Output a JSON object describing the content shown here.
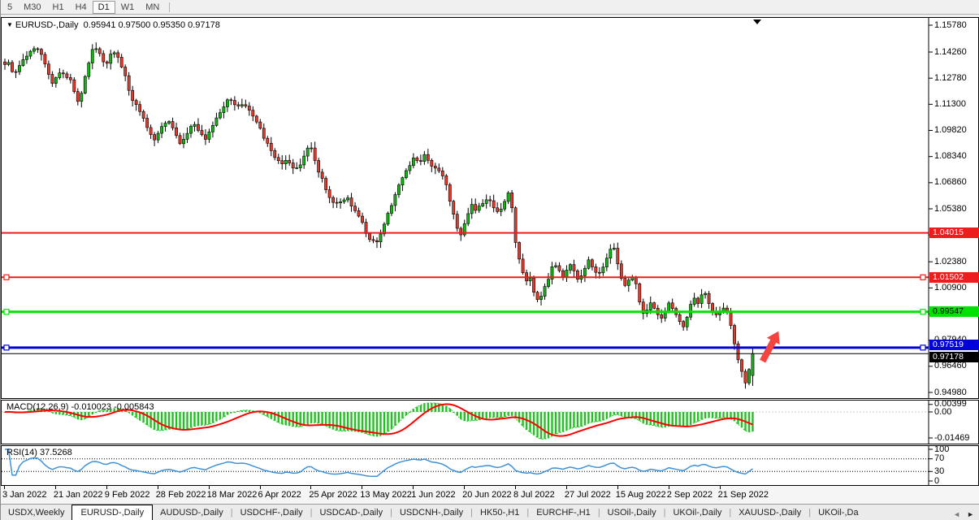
{
  "toolbar": {
    "timeframes": [
      {
        "label": "5",
        "active": false
      },
      {
        "label": "M30",
        "active": false
      },
      {
        "label": "H1",
        "active": false
      },
      {
        "label": "H4",
        "active": false
      },
      {
        "label": "D1",
        "active": true
      },
      {
        "label": "W1",
        "active": false
      },
      {
        "label": "MN",
        "active": false
      }
    ]
  },
  "title": {
    "dropdown_icon": "▼",
    "symbol": "EURUSD-,Daily",
    "ohlc_text": "0.95941 0.97500 0.95350 0.97178"
  },
  "chart_data": {
    "type": "candlestick",
    "symbol": "EURUSD-,Daily",
    "timeframe": "Daily",
    "current_bar": {
      "open": 0.95941,
      "high": 0.975,
      "low": 0.9535,
      "close": 0.97178
    },
    "y_axis_ticks": [
      "1.15780",
      "1.14260",
      "1.12780",
      "1.11300",
      "1.09820",
      "1.08340",
      "1.06860",
      "1.05380",
      "1.03900",
      "1.02380",
      "1.00900",
      "0.99420",
      "0.97940",
      "0.96460",
      "0.94980"
    ],
    "x_axis_dates": [
      "3 Jan 2022",
      "21 Jan 2022",
      "9 Feb 2022",
      "28 Feb 2022",
      "18 Mar 2022",
      "6 Apr 2022",
      "25 Apr 2022",
      "13 May 2022",
      "1 Jun 2022",
      "20 Jun 2022",
      "8 Jul 2022",
      "27 Jul 2022",
      "15 Aug 2022",
      "2 Sep 2022",
      "21 Sep 2022"
    ],
    "horizontal_lines": [
      {
        "price": 1.04015,
        "label": "1.04015",
        "color": "#ee1c1c",
        "thickness": 2,
        "handles": false,
        "label_text_color": "#ffffff",
        "label_dy": 0
      },
      {
        "price": 1.01502,
        "label": "1.01502",
        "color": "#ee1c1c",
        "thickness": 2,
        "handles": true,
        "label_text_color": "#ffffff",
        "label_dy": 0
      },
      {
        "price": 0.99547,
        "label": "0.99547",
        "color": "#00e100",
        "thickness": 3,
        "handles": true,
        "label_text_color": "#000000",
        "label_dy": 0
      },
      {
        "price": 0.97519,
        "label": "0.97519",
        "color": "#0000d8",
        "thickness": 3,
        "handles": true,
        "label_text_color": "#ffffff",
        "label_dy": -3
      },
      {
        "price": 0.97178,
        "label": "0.97178",
        "color": "#000000",
        "thickness": 1,
        "handles": false,
        "label_text_color": "#ffffff",
        "label_dy": 4
      }
    ],
    "candle_colors": {
      "bull": "#11b711",
      "bear": "#e23a2d",
      "outline": "#000000"
    },
    "annotation_arrow": {
      "color": "#f4443f"
    },
    "price_path": [
      [
        8,
        1.1365
      ],
      [
        15,
        1.13
      ],
      [
        25,
        1.137
      ],
      [
        40,
        1.1455
      ],
      [
        50,
        1.141
      ],
      [
        62,
        1.124
      ],
      [
        72,
        1.1315
      ],
      [
        85,
        1.127
      ],
      [
        95,
        1.1135
      ],
      [
        105,
        1.133
      ],
      [
        113,
        1.147
      ],
      [
        120,
        1.142
      ],
      [
        128,
        1.1335
      ],
      [
        137,
        1.144
      ],
      [
        145,
        1.138
      ],
      [
        152,
        1.13
      ],
      [
        158,
        1.118
      ],
      [
        165,
        1.1125
      ],
      [
        172,
        1.107
      ],
      [
        180,
        1.0985
      ],
      [
        188,
        1.093
      ],
      [
        196,
        1.1
      ],
      [
        205,
        1.105
      ],
      [
        212,
        1.098
      ],
      [
        220,
        1.09
      ],
      [
        228,
        1.096
      ],
      [
        235,
        1.103
      ],
      [
        242,
        1.098
      ],
      [
        250,
        1.093
      ],
      [
        258,
        1.1
      ],
      [
        265,
        1.106
      ],
      [
        272,
        1.1105
      ],
      [
        280,
        1.117
      ],
      [
        288,
        1.111
      ],
      [
        295,
        1.1135
      ],
      [
        302,
        1.112
      ],
      [
        308,
        1.108
      ],
      [
        315,
        1.102
      ],
      [
        322,
        1.095
      ],
      [
        330,
        1.088
      ],
      [
        338,
        1.081
      ],
      [
        345,
        1.079
      ],
      [
        352,
        1.0825
      ],
      [
        360,
        1.076
      ],
      [
        368,
        1.079
      ],
      [
        375,
        1.087
      ],
      [
        380,
        1.09
      ],
      [
        387,
        1.079
      ],
      [
        395,
        1.07
      ],
      [
        403,
        1.06
      ],
      [
        410,
        1.056
      ],
      [
        418,
        1.058
      ],
      [
        425,
        1.06
      ],
      [
        432,
        1.054
      ],
      [
        440,
        1.05
      ],
      [
        447,
        1.042
      ],
      [
        453,
        1.036
      ],
      [
        460,
        1.0345
      ],
      [
        466,
        1.039
      ],
      [
        473,
        1.048
      ],
      [
        480,
        1.056
      ],
      [
        487,
        1.065
      ],
      [
        494,
        1.072
      ],
      [
        500,
        1.076
      ],
      [
        508,
        1.083
      ],
      [
        515,
        1.08
      ],
      [
        522,
        1.086
      ],
      [
        528,
        1.078
      ],
      [
        535,
        1.076
      ],
      [
        541,
        1.073
      ],
      [
        547,
        1.069
      ],
      [
        553,
        1.056
      ],
      [
        560,
        1.044
      ],
      [
        566,
        1.039
      ],
      [
        572,
        1.048
      ],
      [
        578,
        1.056
      ],
      [
        584,
        1.052
      ],
      [
        590,
        1.056
      ],
      [
        597,
        1.06
      ],
      [
        604,
        1.056
      ],
      [
        610,
        1.052
      ],
      [
        617,
        1.056
      ],
      [
        623,
        1.064
      ],
      [
        628,
        1.054
      ],
      [
        634,
        1.03
      ],
      [
        640,
        1.0195
      ],
      [
        645,
        1.012
      ],
      [
        650,
        1.0155
      ],
      [
        656,
        1.006
      ],
      [
        662,
        1.001
      ],
      [
        668,
        1.009
      ],
      [
        674,
        1.016
      ],
      [
        680,
        1.023
      ],
      [
        686,
        1.019
      ],
      [
        692,
        1.014
      ],
      [
        698,
        1.024
      ],
      [
        704,
        1.02
      ],
      [
        710,
        1.013
      ],
      [
        716,
        1.019
      ],
      [
        722,
        1.025
      ],
      [
        728,
        1.02
      ],
      [
        734,
        1.015
      ],
      [
        740,
        1.021
      ],
      [
        746,
        1.027
      ],
      [
        752,
        1.034
      ],
      [
        757,
        1.025
      ],
      [
        762,
        1.015
      ],
      [
        768,
        1.009
      ],
      [
        774,
        1.017
      ],
      [
        780,
        1.013
      ],
      [
        786,
        0.999
      ],
      [
        792,
        0.993
      ],
      [
        798,
        1.002
      ],
      [
        804,
        0.996
      ],
      [
        810,
        0.991
      ],
      [
        816,
        0.996
      ],
      [
        822,
        1.001
      ],
      [
        828,
        0.995
      ],
      [
        834,
        0.99
      ],
      [
        840,
        0.987
      ],
      [
        846,
        0.996
      ],
      [
        852,
        1.004
      ],
      [
        858,
        0.999
      ],
      [
        864,
        1.009
      ],
      [
        870,
        1.001
      ],
      [
        876,
        0.995
      ],
      [
        882,
        0.993
      ],
      [
        888,
        0.999
      ],
      [
        894,
        0.994
      ],
      [
        900,
        0.983
      ],
      [
        905,
        0.97
      ],
      [
        910,
        0.964
      ],
      [
        914,
        0.956
      ],
      [
        917,
        0.9555
      ],
      [
        920,
        0.962
      ],
      [
        923,
        0.9594
      ],
      [
        926,
        0.9718
      ]
    ],
    "macd": {
      "name": "MACD(12,26,9)",
      "values_text": "-0.010023 -0.005843",
      "axis_ticks": [
        "0.00399",
        "0.00",
        "-0.01469"
      ],
      "histogram_color": "#22c122",
      "signal_color": "#ff0000",
      "params": {
        "fast": 12,
        "slow": 26,
        "signal": 9
      }
    },
    "rsi": {
      "name": "RSI(14)",
      "value_text": "37.5268",
      "axis_ticks": [
        "100",
        "70",
        "30",
        "0"
      ],
      "levels": [
        70,
        30
      ],
      "line_color": "#3e92d8",
      "period": 14
    }
  },
  "tabs": {
    "scroll_left_icon": "◄",
    "scroll_right_icon": "►",
    "items": [
      {
        "label": "USDX,Weekly",
        "active": false
      },
      {
        "label": "EURUSD-,Daily",
        "active": true
      },
      {
        "label": "AUDUSD-,Daily",
        "active": false
      },
      {
        "label": "USDCHF-,Daily",
        "active": false
      },
      {
        "label": "USDCAD-,Daily",
        "active": false
      },
      {
        "label": "USDCNH-,Daily",
        "active": false
      },
      {
        "label": "HK50-,H1",
        "active": false
      },
      {
        "label": "EURCHF-,H1",
        "active": false
      },
      {
        "label": "USOil-,Daily",
        "active": false
      },
      {
        "label": "UKOil-,Daily",
        "active": false
      },
      {
        "label": "XAUUSD-,Daily",
        "active": false
      },
      {
        "label": "UKOil-,Da",
        "active": false
      }
    ]
  }
}
